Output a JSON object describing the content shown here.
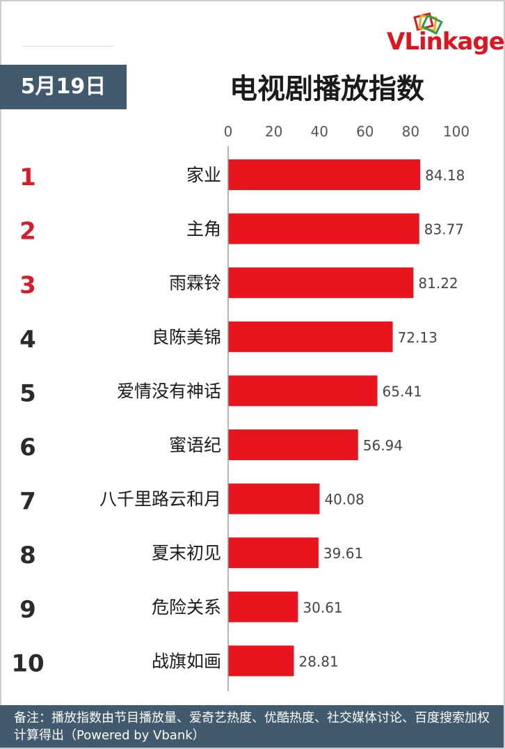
{
  "brand": {
    "logo_text_v": "V",
    "logo_text_rest": "Linkage",
    "colors": {
      "accent": "#e0141e",
      "header_bg": "#415a6d",
      "bar": "#e8141e"
    }
  },
  "date_label": "5月19日",
  "chart_data": {
    "type": "bar",
    "orientation": "horizontal",
    "title": "电视剧播放指数",
    "xlim": [
      0,
      100
    ],
    "xticks": [
      0,
      20,
      40,
      60,
      80,
      100
    ],
    "ranks": [
      "1",
      "2",
      "3",
      "4",
      "5",
      "6",
      "7",
      "8",
      "9",
      "10"
    ],
    "top_rank_color": "#d91c28",
    "rank_color": "#2b2b2b",
    "categories": [
      "家业",
      "主角",
      "雨霖铃",
      "良陈美锦",
      "爱情没有神话",
      "蜜语纪",
      "八千里路云和月",
      "夏末初见",
      "危险关系",
      "战旗如画"
    ],
    "values": [
      84.18,
      83.77,
      81.22,
      72.13,
      65.41,
      56.94,
      40.08,
      39.61,
      30.61,
      28.81
    ],
    "value_labels": [
      "84.18",
      "83.77",
      "81.22",
      "72.13",
      "65.41",
      "56.94",
      "40.08",
      "39.61",
      "30.61",
      "28.81"
    ]
  },
  "footer": {
    "note": "备注：播放指数由节目播放量、爱奇艺热度、优酷热度、社交媒体讨论、百度搜索加权计算得出（Powered by Vbank）"
  }
}
